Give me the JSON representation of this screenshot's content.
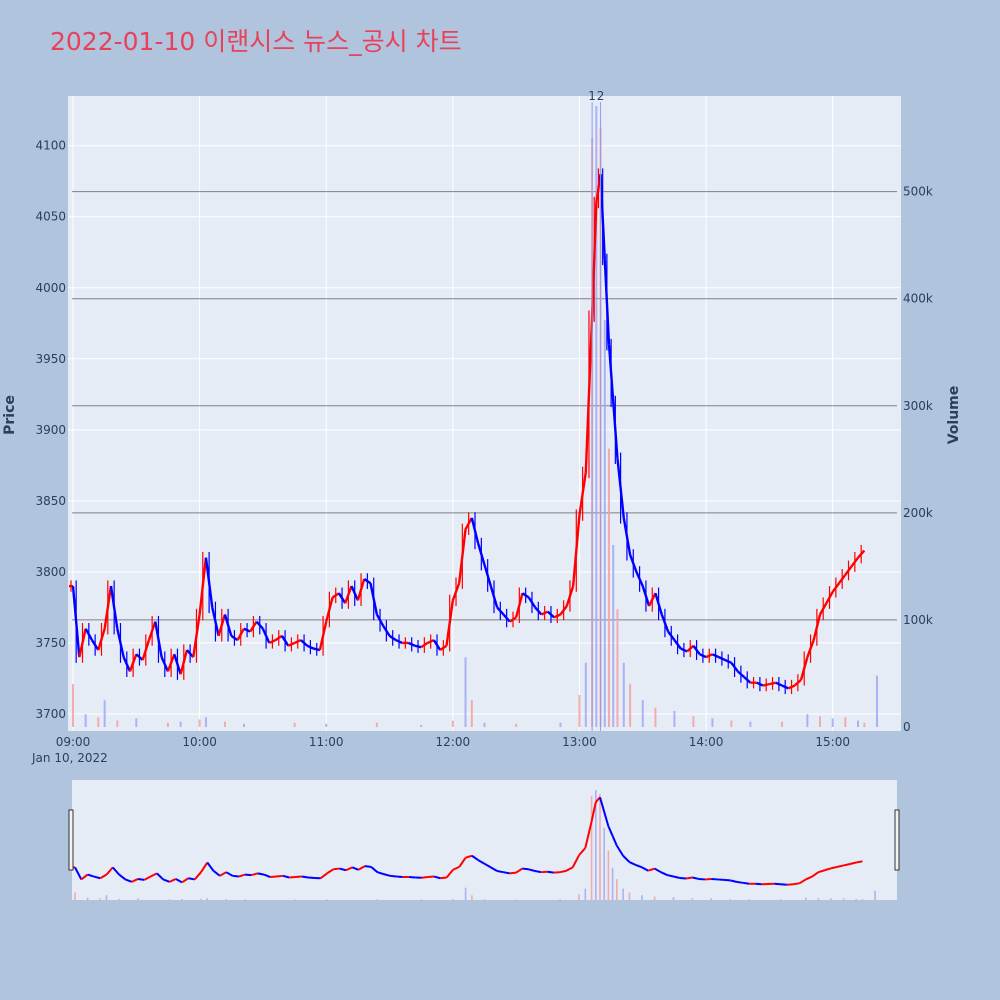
{
  "title": "2022-01-10 이랜시스 뉴스_공시 차트",
  "colors": {
    "background": "#b0c4de",
    "plot_bg": "#e5ecf6",
    "up": "#ff0000",
    "down": "#0000ff",
    "title": "#e8415a",
    "grid": "#ffffff",
    "volume_ref_line": "#808080"
  },
  "chart_data": {
    "type": "candlestick",
    "date_label": "Jan 10, 2022",
    "ylabel": "Price",
    "y2label": "Volume",
    "price_ticks": [
      3700,
      3750,
      3800,
      3850,
      3900,
      3950,
      4000,
      4050,
      4100
    ],
    "volume_ticks": [
      {
        "value": 0,
        "label": "0"
      },
      {
        "value": 100000,
        "label": "100k"
      },
      {
        "value": 200000,
        "label": "200k"
      },
      {
        "value": 300000,
        "label": "300k"
      },
      {
        "value": 400000,
        "label": "400k"
      },
      {
        "value": 500000,
        "label": "500k"
      }
    ],
    "time_ticks": [
      "09:00",
      "10:00",
      "11:00",
      "12:00",
      "13:00",
      "14:00",
      "15:00"
    ],
    "annotations": [
      {
        "text": "1",
        "time": "13:06"
      },
      {
        "text": "2",
        "time": "13:10"
      }
    ],
    "price_series": [
      [
        "09:00",
        3790
      ],
      [
        "09:03",
        3740
      ],
      [
        "09:06",
        3760
      ],
      [
        "09:09",
        3752
      ],
      [
        "09:12",
        3745
      ],
      [
        "09:15",
        3760
      ],
      [
        "09:18",
        3790
      ],
      [
        "09:21",
        3760
      ],
      [
        "09:24",
        3740
      ],
      [
        "09:27",
        3730
      ],
      [
        "09:30",
        3742
      ],
      [
        "09:33",
        3738
      ],
      [
        "09:36",
        3752
      ],
      [
        "09:39",
        3765
      ],
      [
        "09:42",
        3740
      ],
      [
        "09:45",
        3730
      ],
      [
        "09:48",
        3742
      ],
      [
        "09:51",
        3728
      ],
      [
        "09:54",
        3745
      ],
      [
        "09:57",
        3740
      ],
      [
        "10:00",
        3770
      ],
      [
        "10:03",
        3810
      ],
      [
        "10:06",
        3775
      ],
      [
        "10:09",
        3755
      ],
      [
        "10:12",
        3770
      ],
      [
        "10:15",
        3755
      ],
      [
        "10:18",
        3752
      ],
      [
        "10:21",
        3760
      ],
      [
        "10:24",
        3758
      ],
      [
        "10:27",
        3765
      ],
      [
        "10:30",
        3760
      ],
      [
        "10:33",
        3750
      ],
      [
        "10:36",
        3752
      ],
      [
        "10:39",
        3755
      ],
      [
        "10:42",
        3748
      ],
      [
        "10:45",
        3750
      ],
      [
        "10:48",
        3752
      ],
      [
        "10:51",
        3748
      ],
      [
        "10:54",
        3746
      ],
      [
        "10:57",
        3745
      ],
      [
        "11:00",
        3765
      ],
      [
        "11:03",
        3782
      ],
      [
        "11:06",
        3785
      ],
      [
        "11:09",
        3778
      ],
      [
        "11:12",
        3790
      ],
      [
        "11:15",
        3780
      ],
      [
        "11:18",
        3795
      ],
      [
        "11:21",
        3792
      ],
      [
        "11:24",
        3770
      ],
      [
        "11:27",
        3762
      ],
      [
        "11:30",
        3755
      ],
      [
        "11:33",
        3752
      ],
      [
        "11:36",
        3750
      ],
      [
        "11:39",
        3750
      ],
      [
        "11:42",
        3748
      ],
      [
        "11:45",
        3747
      ],
      [
        "11:48",
        3750
      ],
      [
        "11:51",
        3752
      ],
      [
        "11:54",
        3745
      ],
      [
        "11:57",
        3748
      ],
      [
        "12:00",
        3780
      ],
      [
        "12:03",
        3792
      ],
      [
        "12:06",
        3830
      ],
      [
        "12:09",
        3838
      ],
      [
        "12:12",
        3820
      ],
      [
        "12:15",
        3805
      ],
      [
        "12:18",
        3790
      ],
      [
        "12:21",
        3775
      ],
      [
        "12:24",
        3770
      ],
      [
        "12:27",
        3765
      ],
      [
        "12:30",
        3768
      ],
      [
        "12:33",
        3785
      ],
      [
        "12:36",
        3782
      ],
      [
        "12:39",
        3775
      ],
      [
        "12:42",
        3770
      ],
      [
        "12:45",
        3772
      ],
      [
        "12:48",
        3768
      ],
      [
        "12:51",
        3770
      ],
      [
        "12:54",
        3776
      ],
      [
        "12:57",
        3790
      ],
      [
        "13:00",
        3840
      ],
      [
        "13:03",
        3870
      ],
      [
        "13:06",
        3980
      ],
      [
        "13:08",
        4060
      ],
      [
        "13:10",
        4080
      ],
      [
        "13:12",
        4020
      ],
      [
        "13:14",
        3960
      ],
      [
        "13:16",
        3920
      ],
      [
        "13:18",
        3880
      ],
      [
        "13:21",
        3838
      ],
      [
        "13:24",
        3812
      ],
      [
        "13:27",
        3800
      ],
      [
        "13:30",
        3790
      ],
      [
        "13:33",
        3776
      ],
      [
        "13:36",
        3785
      ],
      [
        "13:39",
        3770
      ],
      [
        "13:42",
        3758
      ],
      [
        "13:45",
        3752
      ],
      [
        "13:48",
        3746
      ],
      [
        "13:51",
        3744
      ],
      [
        "13:54",
        3748
      ],
      [
        "13:57",
        3742
      ],
      [
        "14:00",
        3740
      ],
      [
        "14:03",
        3742
      ],
      [
        "14:06",
        3740
      ],
      [
        "14:09",
        3738
      ],
      [
        "14:12",
        3736
      ],
      [
        "14:15",
        3730
      ],
      [
        "14:18",
        3726
      ],
      [
        "14:21",
        3722
      ],
      [
        "14:24",
        3722
      ],
      [
        "14:27",
        3720
      ],
      [
        "14:30",
        3721
      ],
      [
        "14:33",
        3722
      ],
      [
        "14:36",
        3720
      ],
      [
        "14:39",
        3718
      ],
      [
        "14:42",
        3720
      ],
      [
        "14:45",
        3724
      ],
      [
        "14:48",
        3740
      ],
      [
        "14:51",
        3752
      ],
      [
        "14:54",
        3770
      ],
      [
        "14:57",
        3778
      ],
      [
        "15:00",
        3786
      ],
      [
        "15:03",
        3792
      ],
      [
        "15:06",
        3798
      ],
      [
        "15:09",
        3804
      ],
      [
        "15:12",
        3810
      ],
      [
        "15:15",
        3815
      ]
    ],
    "volume_series": [
      [
        "09:00",
        40000
      ],
      [
        "09:06",
        12000
      ],
      [
        "09:12",
        9000
      ],
      [
        "09:15",
        25000
      ],
      [
        "09:21",
        6000
      ],
      [
        "09:30",
        8000
      ],
      [
        "09:45",
        4000
      ],
      [
        "09:51",
        5000
      ],
      [
        "10:00",
        7000
      ],
      [
        "10:03",
        9000
      ],
      [
        "10:12",
        5000
      ],
      [
        "10:21",
        3000
      ],
      [
        "10:45",
        4000
      ],
      [
        "11:00",
        3000
      ],
      [
        "11:24",
        4000
      ],
      [
        "11:45",
        2000
      ],
      [
        "12:00",
        6000
      ],
      [
        "12:06",
        65000
      ],
      [
        "12:09",
        25000
      ],
      [
        "12:15",
        4000
      ],
      [
        "12:30",
        3000
      ],
      [
        "12:51",
        4000
      ],
      [
        "13:00",
        30000
      ],
      [
        "13:03",
        60000
      ],
      [
        "13:06",
        550000
      ],
      [
        "13:08",
        580000
      ],
      [
        "13:10",
        560000
      ],
      [
        "13:12",
        380000
      ],
      [
        "13:14",
        260000
      ],
      [
        "13:16",
        170000
      ],
      [
        "13:18",
        110000
      ],
      [
        "13:21",
        60000
      ],
      [
        "13:24",
        40000
      ],
      [
        "13:30",
        25000
      ],
      [
        "13:36",
        18000
      ],
      [
        "13:45",
        15000
      ],
      [
        "13:54",
        10000
      ],
      [
        "14:03",
        8000
      ],
      [
        "14:12",
        6000
      ],
      [
        "14:21",
        5000
      ],
      [
        "14:36",
        5000
      ],
      [
        "14:48",
        12000
      ],
      [
        "14:54",
        10000
      ],
      [
        "15:00",
        8000
      ],
      [
        "15:06",
        9000
      ],
      [
        "15:12",
        6000
      ],
      [
        "15:15",
        4000
      ],
      [
        "15:21",
        48000
      ]
    ],
    "volume_ref_lines": [
      100000,
      200000,
      300000,
      400000,
      500000
    ],
    "price_range": [
      3688,
      4135
    ],
    "volume_range": [
      0,
      580000
    ],
    "time_range": [
      "09:00",
      "15:30"
    ]
  }
}
